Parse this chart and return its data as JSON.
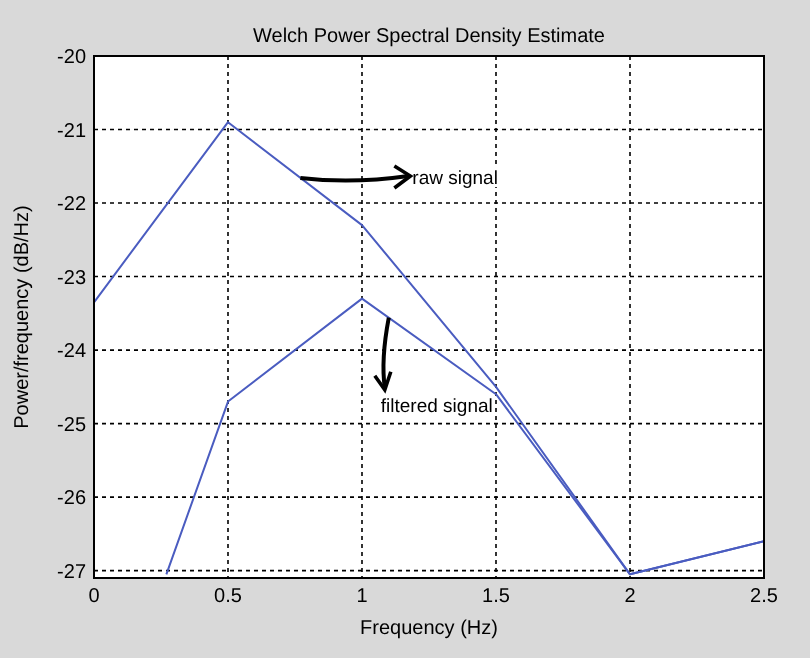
{
  "chart_data": {
    "type": "line",
    "title": "Welch Power Spectral Density Estimate",
    "xlabel": "Frequency (Hz)",
    "ylabel": "Power/frequency (dB/Hz)",
    "x": [
      0,
      0.5,
      1,
      1.5,
      2,
      2.5
    ],
    "series": [
      {
        "color": "#4a5cc0",
        "values": [
          -23.35,
          -20.9,
          -22.3,
          -24.5,
          -27.05,
          -26.6
        ]
      },
      {
        "color": "#4a5cc0",
        "x": [
          0.27,
          0.5,
          1,
          1.5,
          2,
          2.5
        ],
        "values": [
          -27.05,
          -24.7,
          -23.3,
          -24.6,
          -27.05,
          -26.6
        ]
      }
    ],
    "annotations": [
      {
        "text": "raw signal",
        "x": 0.77,
        "y": -21.66
      },
      {
        "text": "filtered signal",
        "x": 1.1,
        "y": -23.56
      }
    ],
    "xlim": [
      0,
      2.5
    ],
    "xticks": [
      0,
      0.5,
      1,
      1.5,
      2,
      2.5
    ],
    "ylim": [
      -27.1,
      -20
    ],
    "yticks": [
      -27,
      -26,
      -25,
      -24,
      -23,
      -22,
      -21,
      -20
    ],
    "grid": true,
    "line_style": "solid",
    "marker": "none"
  }
}
